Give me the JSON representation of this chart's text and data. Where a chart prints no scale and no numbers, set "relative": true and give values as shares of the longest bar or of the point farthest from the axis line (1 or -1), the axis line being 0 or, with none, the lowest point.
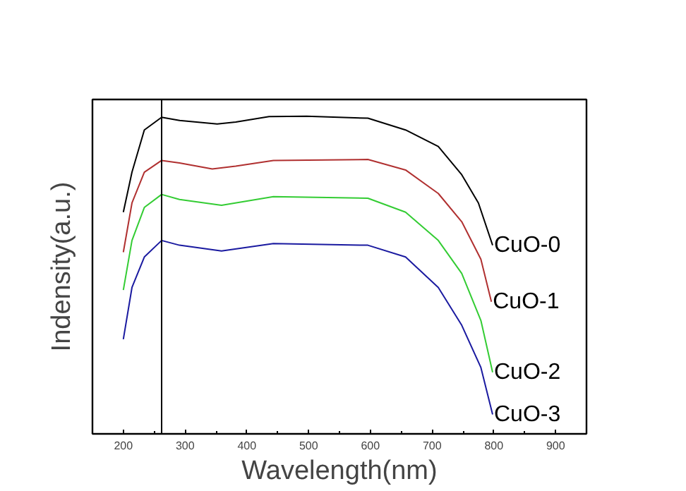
{
  "chart_data": {
    "type": "line",
    "xlabel": "Wavelength(nm)",
    "ylabel": "Indensity(a.u.)",
    "relative": true,
    "xlim": [
      150,
      950
    ],
    "xticks": [
      200,
      300,
      400,
      500,
      600,
      700,
      800,
      900
    ],
    "grid": false,
    "marker": "none",
    "line_style": "solid",
    "ref_lines": [
      {
        "axis": "x",
        "value": 262,
        "color": "#000000"
      }
    ],
    "series": [
      {
        "name": "CuO-0",
        "color": "#000000",
        "x": [
          200,
          214,
          234,
          262,
          291,
          352,
          382,
          436,
          497,
          596,
          657,
          710,
          748,
          775,
          798
        ],
        "values": [
          0.698,
          0.824,
          0.957,
          0.997,
          0.987,
          0.976,
          0.982,
          0.999,
          1.0,
          0.994,
          0.957,
          0.905,
          0.816,
          0.727,
          0.594
        ]
      },
      {
        "name": "CuO-1",
        "color": "#b03030",
        "x": [
          200,
          214,
          234,
          262,
          291,
          344,
          382,
          443,
          596,
          657,
          710,
          748,
          779,
          796
        ],
        "values": [
          0.572,
          0.727,
          0.824,
          0.861,
          0.853,
          0.834,
          0.843,
          0.861,
          0.864,
          0.831,
          0.757,
          0.668,
          0.55,
          0.416
        ]
      },
      {
        "name": "CuO-2",
        "color": "#33cc33",
        "x": [
          200,
          214,
          234,
          262,
          291,
          359,
          443,
          596,
          657,
          710,
          748,
          779,
          798
        ],
        "values": [
          0.453,
          0.609,
          0.713,
          0.754,
          0.738,
          0.72,
          0.747,
          0.742,
          0.698,
          0.609,
          0.505,
          0.357,
          0.194
        ]
      },
      {
        "name": "CuO-3",
        "color": "#1a1aa0",
        "x": [
          200,
          214,
          234,
          262,
          291,
          359,
          443,
          596,
          657,
          710,
          748,
          779,
          798
        ],
        "values": [
          0.298,
          0.461,
          0.557,
          0.609,
          0.594,
          0.576,
          0.599,
          0.594,
          0.557,
          0.461,
          0.342,
          0.209,
          0.061
        ]
      }
    ]
  }
}
